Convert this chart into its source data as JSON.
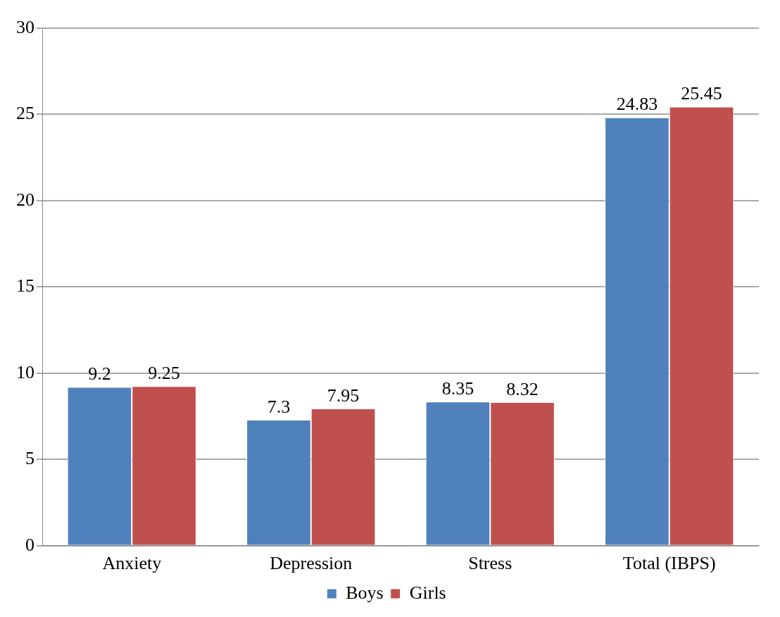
{
  "chart_data": {
    "type": "bar",
    "categories": [
      "Anxiety",
      "Depression",
      "Stress",
      "Total (IBPS)"
    ],
    "series": [
      {
        "name": "Boys",
        "color": "#4f81bd",
        "values": [
          9.2,
          7.3,
          8.35,
          24.83
        ]
      },
      {
        "name": "Girls",
        "color": "#c0504d",
        "values": [
          9.25,
          7.95,
          8.32,
          25.45
        ]
      }
    ],
    "ylim": [
      0,
      30
    ],
    "yticks": [
      0,
      5,
      10,
      15,
      20,
      25,
      30
    ],
    "grid": "y",
    "legend": "bottom",
    "data_labels": true
  }
}
